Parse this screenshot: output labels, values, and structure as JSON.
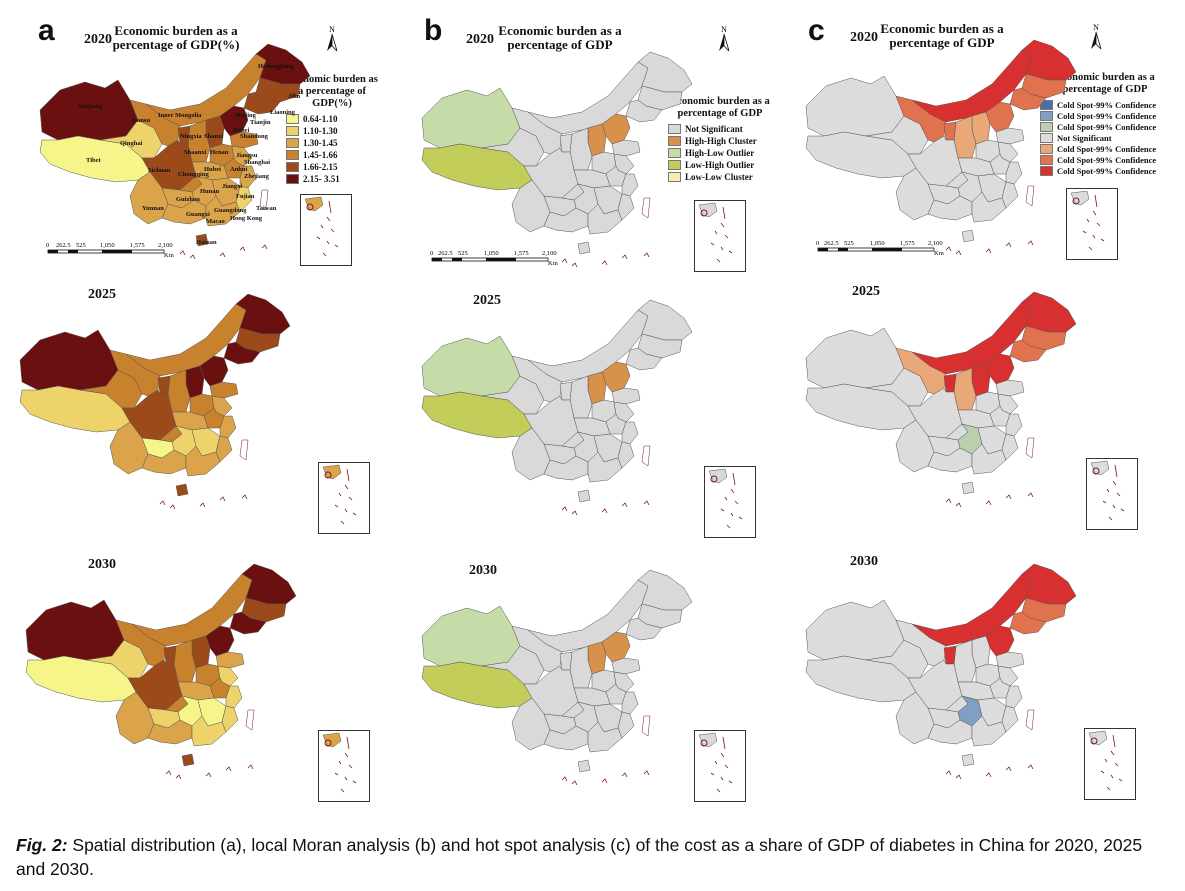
{
  "panels": [
    {
      "letter": "a",
      "title": "Economic burden as a percentage of GDP(%)"
    },
    {
      "letter": "b",
      "title": "Economic burden as a percentage of GDP"
    },
    {
      "letter": "c",
      "title": "Economic burden as a percentage of GDP"
    }
  ],
  "years": [
    "2020",
    "2025",
    "2030"
  ],
  "north_label": "N",
  "scale": {
    "ticks": [
      "0",
      "262.5",
      "525",
      "1,050",
      "1,575",
      "2,100"
    ],
    "unit": "Km"
  },
  "legend_a": {
    "title": "Economic burden as a percentage of GDP(%)",
    "items": [
      {
        "label": "0.64-1.10",
        "color": "#f5f58a"
      },
      {
        "label": "1.10-1.30",
        "color": "#eed36a"
      },
      {
        "label": "1.30-1.45",
        "color": "#dba44a"
      },
      {
        "label": "1.45-1.66",
        "color": "#c8822e"
      },
      {
        "label": "1.66-2.15",
        "color": "#9c4a1a"
      },
      {
        "label": "2.15- 3.51",
        "color": "#6b1010"
      }
    ]
  },
  "legend_b": {
    "title": "Economic burden as a percentage of GDP",
    "items": [
      {
        "label": "Not Significant",
        "color": "#d9d9d9"
      },
      {
        "label": "High-High Cluster",
        "color": "#d8914a"
      },
      {
        "label": "High-Low Outlier",
        "color": "#c5dca8"
      },
      {
        "label": "Low-High Outlier",
        "color": "#c3cd5a"
      },
      {
        "label": "Low-Low Cluster",
        "color": "#f5ecb5"
      }
    ]
  },
  "legend_c": {
    "title": "Economic burden as a percentage of GDP",
    "items": [
      {
        "label": "Cold Spot-99% Confidence",
        "color": "#4a6fa8"
      },
      {
        "label": "Cold Spot-99% Confidence",
        "color": "#7f9fc4"
      },
      {
        "label": "Cold Spot-99% Confidence",
        "color": "#b9cfb0"
      },
      {
        "label": "Not Significant",
        "color": "#dcdcdc"
      },
      {
        "label": "Cold Spot-99% Confidence",
        "color": "#eaa777"
      },
      {
        "label": "Cold Spot-99% Confidence",
        "color": "#e0724f"
      },
      {
        "label": "Cold Spot-99% Confidence",
        "color": "#d83030"
      }
    ]
  },
  "province_labels": [
    "Heilongjiang",
    "Jilin",
    "Liaoning",
    "Xinjiang",
    "Gansu",
    "Inner Mongolia",
    "Beijing",
    "Tianjin",
    "Ningxia",
    "Shanxi",
    "Hebei",
    "Shandong",
    "Qinghai",
    "Shaanxi",
    "Henan",
    "Jiangsu",
    "Shanghai",
    "Tibet",
    "Sichuan",
    "Hubei",
    "Anhui",
    "Zhejiang",
    "Chongqing",
    "Jiangxi",
    "Hunan",
    "Fujian",
    "Guizhou",
    "Yunnan",
    "Guangxi",
    "Guangdong",
    "Taiwan",
    "Hong Kong",
    "Macao",
    "Hainan"
  ],
  "caption": {
    "label": "Fig. 2:",
    "text": " Spatial distribution (a), local Moran analysis (b) and hot spot analysis (c) of the cost as a share of GDP of diabetes in China for 2020, 2025 and 2030."
  }
}
